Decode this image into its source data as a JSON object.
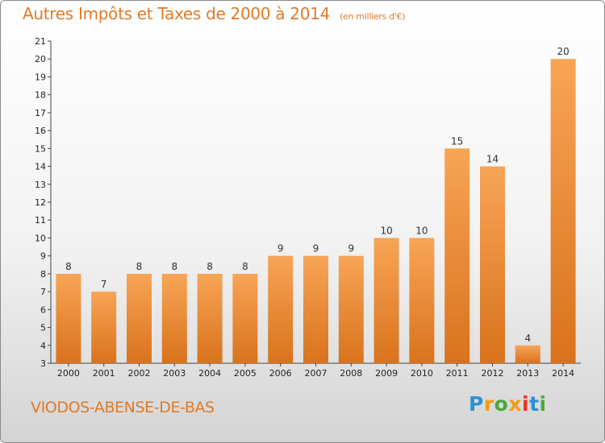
{
  "header": {
    "title": "Autres Impôts et Taxes de 2000 à 2014",
    "unit": "(en milliers d'€)"
  },
  "footer": {
    "place": "VIODOS-ABENSE-DE-BAS",
    "brand": "Proxiti"
  },
  "colors": {
    "bar_top": "#f7a556",
    "bar_bottom": "#d9721c",
    "title": "#e07a26",
    "axis": "#444444",
    "brand_letters": [
      "#2d8fd5",
      "#f39c12",
      "#4aa83c",
      "#f39c12",
      "#e8342a",
      "#2d8fd5",
      "#4aa83c"
    ]
  },
  "chart_data": {
    "type": "bar",
    "title": "Autres Impôts et Taxes de 2000 à 2014",
    "subtitle": "(en milliers d'€)",
    "categories": [
      "2000",
      "2001",
      "2002",
      "2003",
      "2004",
      "2005",
      "2006",
      "2007",
      "2008",
      "2009",
      "2010",
      "2011",
      "2012",
      "2013",
      "2014"
    ],
    "values": [
      8,
      7,
      8,
      8,
      8,
      8,
      9,
      9,
      9,
      10,
      10,
      15,
      14,
      4,
      20
    ],
    "xlabel": "",
    "ylabel": "",
    "ylim": [
      3,
      21
    ],
    "yticks": [
      3,
      4,
      5,
      6,
      7,
      8,
      9,
      10,
      11,
      12,
      13,
      14,
      15,
      16,
      17,
      18,
      19,
      20,
      21
    ],
    "grid": false,
    "legend": "none"
  }
}
